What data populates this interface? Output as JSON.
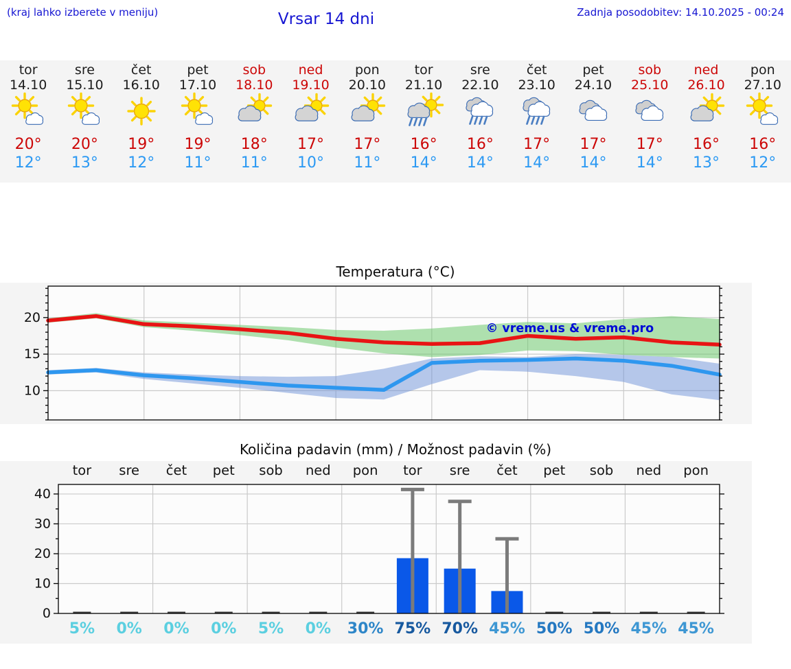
{
  "header": {
    "hint": "(kraj lahko izberete v meniju)",
    "title": "Vrsar 14 dni",
    "updated": "Zadnja posodobitev: 14.10.2025 - 00:24"
  },
  "colors": {
    "header_blue": "#1616d2",
    "weekend_red": "#cc0606",
    "high_temp_red": "#cc0606",
    "low_temp_blue": "#2b99f3",
    "strip_bg": "#f4f4f4",
    "bar_blue": "#0a58e8",
    "error_gray": "#7b7b7b",
    "line_red": "#e81414",
    "line_blue": "#2e97ef",
    "watermark_blue": "#000bd6"
  },
  "forecast": {
    "days": [
      {
        "name": "tor",
        "date": "14.10",
        "weekend": false,
        "icon": "sun-cloud",
        "high": "20°",
        "low": "12°"
      },
      {
        "name": "sre",
        "date": "15.10",
        "weekend": false,
        "icon": "sun-cloud",
        "high": "20°",
        "low": "13°"
      },
      {
        "name": "čet",
        "date": "16.10",
        "weekend": false,
        "icon": "sun",
        "high": "19°",
        "low": "12°"
      },
      {
        "name": "pet",
        "date": "17.10",
        "weekend": false,
        "icon": "sun-cloud",
        "high": "19°",
        "low": "11°"
      },
      {
        "name": "sob",
        "date": "18.10",
        "weekend": true,
        "icon": "cloud-sun",
        "high": "18°",
        "low": "11°"
      },
      {
        "name": "ned",
        "date": "19.10",
        "weekend": true,
        "icon": "cloud-sun",
        "high": "17°",
        "low": "10°"
      },
      {
        "name": "pon",
        "date": "20.10",
        "weekend": false,
        "icon": "cloud-sun",
        "high": "17°",
        "low": "11°"
      },
      {
        "name": "tor",
        "date": "21.10",
        "weekend": false,
        "icon": "sun-rain",
        "high": "16°",
        "low": "14°"
      },
      {
        "name": "sre",
        "date": "22.10",
        "weekend": false,
        "icon": "rain",
        "high": "16°",
        "low": "14°"
      },
      {
        "name": "čet",
        "date": "23.10",
        "weekend": false,
        "icon": "rain",
        "high": "17°",
        "low": "14°"
      },
      {
        "name": "pet",
        "date": "24.10",
        "weekend": false,
        "icon": "cloudy",
        "high": "17°",
        "low": "14°"
      },
      {
        "name": "sob",
        "date": "25.10",
        "weekend": true,
        "icon": "cloudy",
        "high": "17°",
        "low": "14°"
      },
      {
        "name": "ned",
        "date": "26.10",
        "weekend": true,
        "icon": "cloud-sun",
        "high": "16°",
        "low": "13°"
      },
      {
        "name": "pon",
        "date": "27.10",
        "weekend": false,
        "icon": "sun-cloud",
        "high": "16°",
        "low": "12°"
      }
    ]
  },
  "chart_data": [
    {
      "type": "line",
      "title": "Temperatura (°C)",
      "ylim": [
        6,
        24.3
      ],
      "yticks": [
        10,
        15,
        20
      ],
      "grid": true,
      "watermark": "© vreme.us & vreme.pro",
      "series": [
        {
          "name": "max temperatura",
          "color": "#e81414",
          "values": [
            19.6,
            20.2,
            19.1,
            18.8,
            18.4,
            17.9,
            17.1,
            16.6,
            16.4,
            16.5,
            17.5,
            17.1,
            17.3,
            16.6,
            16.3
          ],
          "band_hi": [
            19.9,
            20.6,
            19.6,
            19.3,
            19.0,
            18.7,
            18.3,
            18.2,
            18.5,
            19.0,
            19.4,
            19.2,
            19.8,
            20.2,
            19.8
          ],
          "band_lo": [
            19.3,
            19.9,
            18.7,
            18.2,
            17.6,
            16.9,
            15.9,
            15.1,
            14.6,
            14.9,
            15.5,
            15.4,
            14.9,
            14.6,
            14.4
          ],
          "band_color": "rgba(110,200,110,0.55)"
        },
        {
          "name": "min temperatura",
          "color": "#2e97ef",
          "values": [
            12.5,
            12.8,
            12.1,
            11.7,
            11.2,
            10.7,
            10.4,
            10.1,
            13.8,
            14.1,
            14.2,
            14.4,
            14.1,
            13.4,
            12.2
          ],
          "band_hi": [
            12.8,
            13.1,
            12.5,
            12.2,
            12.0,
            11.9,
            12.0,
            13.0,
            14.4,
            14.7,
            14.6,
            15.0,
            14.9,
            14.6,
            13.7
          ],
          "band_lo": [
            12.2,
            12.5,
            11.6,
            11.0,
            10.4,
            9.7,
            9.0,
            8.8,
            10.9,
            12.8,
            12.6,
            12.0,
            11.2,
            9.5,
            8.7
          ],
          "band_color": "rgba(110,145,215,0.5)"
        }
      ]
    },
    {
      "type": "bar",
      "title": "Količina padavin (mm) / Možnost padavin (%)",
      "categories": [
        "tor",
        "sre",
        "čet",
        "pet",
        "sob",
        "ned",
        "pon",
        "tor",
        "sre",
        "čet",
        "pet",
        "sob",
        "ned",
        "pon"
      ],
      "values": [
        0,
        0,
        0,
        0,
        0,
        0,
        0,
        18.5,
        15,
        7.5,
        0,
        0,
        0,
        0
      ],
      "error_max": [
        null,
        null,
        null,
        null,
        null,
        null,
        null,
        41.5,
        37.5,
        25,
        null,
        null,
        null,
        null
      ],
      "ylim": [
        0,
        43.2
      ],
      "yticks": [
        0,
        10,
        20,
        30,
        40
      ],
      "bar_color": "#0a58e8",
      "error_color": "#7b7b7b",
      "probabilities": [
        {
          "label": "5%",
          "color": "#5bcfe0"
        },
        {
          "label": "0%",
          "color": "#5bcfe0"
        },
        {
          "label": "0%",
          "color": "#5bcfe0"
        },
        {
          "label": "0%",
          "color": "#5bcfe0"
        },
        {
          "label": "5%",
          "color": "#5bcfe0"
        },
        {
          "label": "0%",
          "color": "#5bcfe0"
        },
        {
          "label": "30%",
          "color": "#2e86c8"
        },
        {
          "label": "75%",
          "color": "#17599f"
        },
        {
          "label": "70%",
          "color": "#17599f"
        },
        {
          "label": "45%",
          "color": "#3e97d3"
        },
        {
          "label": "50%",
          "color": "#2478c1"
        },
        {
          "label": "50%",
          "color": "#2478c1"
        },
        {
          "label": "45%",
          "color": "#3e97d3"
        },
        {
          "label": "45%",
          "color": "#3e97d3"
        }
      ]
    }
  ]
}
